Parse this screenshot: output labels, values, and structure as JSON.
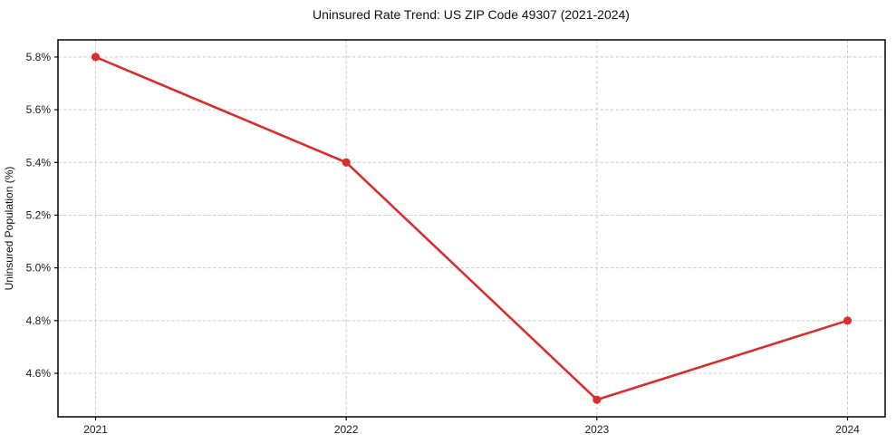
{
  "chart_data": {
    "type": "line",
    "title": "Uninsured Rate Trend: US ZIP Code 49307 (2021-2024)",
    "xlabel": "",
    "ylabel": "Uninsured Population (%)",
    "x": [
      2021,
      2022,
      2023,
      2024
    ],
    "values": [
      5.8,
      5.4,
      4.5,
      4.8
    ],
    "x_ticks": [
      2021,
      2022,
      2023,
      2024
    ],
    "x_tick_labels": [
      "2021",
      "2022",
      "2023",
      "2024"
    ],
    "y_ticks": [
      4.6,
      4.8,
      5.0,
      5.2,
      5.4,
      5.6,
      5.8
    ],
    "y_tick_labels": [
      "4.6%",
      "4.8%",
      "5.0%",
      "5.2%",
      "5.4%",
      "5.6%",
      "5.8%"
    ],
    "xlim": [
      2020.85,
      2024.15
    ],
    "ylim": [
      4.435,
      5.865
    ],
    "grid": true,
    "grid_style": "dashed",
    "legend": false,
    "line_color": "#d62f2f",
    "marker": "circle",
    "marker_radius": 4.6,
    "grid_color": "#cccccc",
    "axis_color": "#000000",
    "background": "#ffffff"
  }
}
